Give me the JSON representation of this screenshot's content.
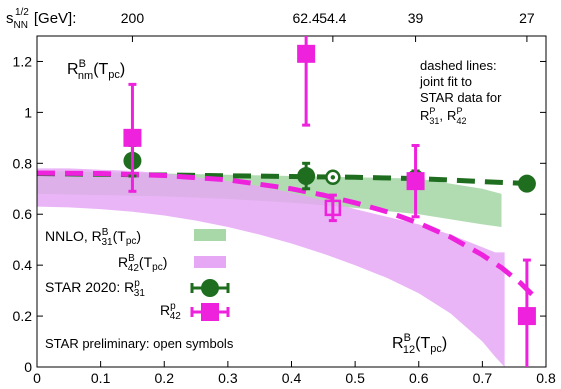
{
  "chart_data": {
    "type": "scatter",
    "x_axis": {
      "range": [
        0,
        0.8
      ],
      "ticks": [
        0,
        0.1,
        0.2,
        0.3,
        0.4,
        0.5,
        0.6,
        0.7,
        0.8
      ],
      "tick_labels": [
        "0",
        "0.1",
        "0.2",
        "0.3",
        "0.4",
        "0.5",
        "0.6",
        "0.7",
        "0.8"
      ]
    },
    "y_axis": {
      "range": [
        0,
        1.3
      ],
      "ticks": [
        0,
        0.2,
        0.4,
        0.6,
        0.8,
        1.0,
        1.2
      ],
      "tick_labels": [
        "0",
        "0.2",
        "0.4",
        "0.6",
        "0.8",
        "1",
        "1.2"
      ]
    },
    "top_axis": {
      "label_base": "s",
      "label_sub": "NN",
      "label_sup": "1/2",
      "label_unit": "[GeV]:",
      "ticks": [
        {
          "x": 0.15,
          "label": "200"
        },
        {
          "x": 0.423,
          "label": "62.4"
        },
        {
          "x": 0.465,
          "label": "54.4"
        },
        {
          "x": 0.595,
          "label": "39"
        },
        {
          "x": 0.77,
          "label": "27"
        }
      ]
    },
    "bands": [
      {
        "key": "r31",
        "color": "#a8d8a8",
        "x": [
          0.0,
          0.1,
          0.2,
          0.3,
          0.4,
          0.5,
          0.6,
          0.7,
          0.73
        ],
        "upper": [
          0.77,
          0.765,
          0.76,
          0.755,
          0.75,
          0.745,
          0.74,
          0.7,
          0.68
        ],
        "lower": [
          0.68,
          0.675,
          0.67,
          0.66,
          0.645,
          0.625,
          0.6,
          0.56,
          0.55
        ]
      },
      {
        "key": "r42",
        "color": "#e6a8f4",
        "x": [
          0.0,
          0.05,
          0.1,
          0.15,
          0.2,
          0.25,
          0.3,
          0.35,
          0.4,
          0.45,
          0.5,
          0.55,
          0.6,
          0.65,
          0.7,
          0.72,
          0.735
        ],
        "upper": [
          0.78,
          0.78,
          0.775,
          0.77,
          0.76,
          0.745,
          0.73,
          0.71,
          0.685,
          0.655,
          0.62,
          0.59,
          0.56,
          0.52,
          0.47,
          0.45,
          0.45
        ],
        "lower": [
          0.63,
          0.627,
          0.62,
          0.61,
          0.595,
          0.575,
          0.55,
          0.52,
          0.485,
          0.445,
          0.4,
          0.35,
          0.29,
          0.21,
          0.1,
          0.04,
          0.0
        ]
      }
    ],
    "fit_lines": [
      {
        "key": "r31",
        "color": "#1f6e1f",
        "x": [
          0.0,
          0.1,
          0.2,
          0.3,
          0.4,
          0.5,
          0.6,
          0.7,
          0.78
        ],
        "y": [
          0.76,
          0.757,
          0.754,
          0.751,
          0.748,
          0.745,
          0.74,
          0.728,
          0.72
        ]
      },
      {
        "key": "r42",
        "color": "#ee22dd",
        "x": [
          0.0,
          0.1,
          0.2,
          0.3,
          0.4,
          0.45,
          0.5,
          0.55,
          0.6,
          0.65,
          0.7,
          0.73,
          0.76,
          0.78
        ],
        "y": [
          0.762,
          0.76,
          0.752,
          0.735,
          0.7,
          0.675,
          0.645,
          0.61,
          0.565,
          0.51,
          0.44,
          0.39,
          0.33,
          0.28
        ]
      }
    ],
    "series": [
      {
        "key": "r31",
        "color": "#1f6e1f",
        "marker": "circle",
        "points": [
          {
            "x": 0.15,
            "y": 0.81,
            "yerr": 0.06,
            "open": false
          },
          {
            "x": 0.423,
            "y": 0.75,
            "yerr": 0.05,
            "open": false
          },
          {
            "x": 0.465,
            "y": 0.745,
            "yerr": 0.02,
            "open": true
          },
          {
            "x": 0.595,
            "y": 0.74,
            "yerr": 0.03,
            "open": false
          },
          {
            "x": 0.77,
            "y": 0.72,
            "yerr": 0.02,
            "open": false
          }
        ]
      },
      {
        "key": "r42",
        "color": "#ee22dd",
        "marker": "square",
        "points": [
          {
            "x": 0.15,
            "y": 0.9,
            "yerr": 0.21,
            "open": false
          },
          {
            "x": 0.423,
            "y": 1.23,
            "yerr": 0.28,
            "open": false
          },
          {
            "x": 0.465,
            "y": 0.625,
            "yerr": 0.05,
            "open": true
          },
          {
            "x": 0.595,
            "y": 0.73,
            "yerr": 0.14,
            "open": false
          },
          {
            "x": 0.77,
            "y": 0.2,
            "yerr": 0.22,
            "open": false
          }
        ]
      }
    ],
    "annotations": {
      "rnm_base": "R",
      "rnm_sup": "B",
      "rnm_sub": "nm",
      "rnm_arg": "(T",
      "rnm_arg_sub": "pc",
      "rnm_close": ")",
      "fit_line1": "dashed lines:",
      "fit_line2": "joint fit to",
      "fit_line3": "STAR data for",
      "fit_r": "R",
      "fit_p": "P",
      "fit_31": "31",
      "fit_comma": ",",
      "fit_42": "42",
      "r12_base": "R",
      "r12_sup": "B",
      "r12_sub": "12",
      "r12_arg": "(T",
      "r12_arg_sub": "pc",
      "r12_close": ")",
      "preliminary": "STAR preliminary: open symbols"
    },
    "legend": {
      "nnlo_prefix": "NNLO, R",
      "nnlo_sup": "B",
      "nnlo_31": "31",
      "nnlo_arg": "(T",
      "nnlo_arg_sub": "pc",
      "nnlo_close": ")",
      "r42_base": "R",
      "r42_sup": "B",
      "r42_sub": "42",
      "r42_arg": "(T",
      "r42_arg_sub": "pc",
      "r42_close": ")",
      "star_prefix": "STAR 2020: R",
      "star_sup": "p",
      "star_31": "31",
      "star42_base": "R",
      "star42_sup": "p",
      "star42_sub": "42"
    }
  }
}
